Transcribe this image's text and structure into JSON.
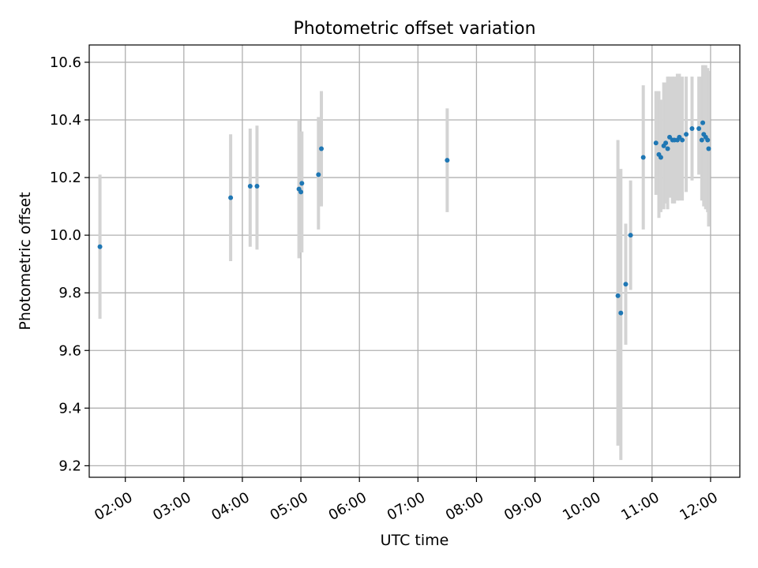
{
  "chart_data": {
    "type": "scatter",
    "title": "Photometric offset variation",
    "xlabel": "UTC time",
    "ylabel": "Photometric offset",
    "x_tick_labels": [
      "02:00",
      "03:00",
      "04:00",
      "05:00",
      "06:00",
      "07:00",
      "08:00",
      "09:00",
      "10:00",
      "11:00",
      "12:00"
    ],
    "y_ticks": [
      9.2,
      9.4,
      9.6,
      9.8,
      10.0,
      10.2,
      10.4,
      10.6
    ],
    "y_tick_labels": [
      "9.2",
      "9.4",
      "9.6",
      "9.8",
      "10.0",
      "10.2",
      "10.4",
      "10.6"
    ],
    "xlim": [
      "01:23",
      "12:30"
    ],
    "ylim": [
      9.16,
      10.66
    ],
    "grid": true,
    "colors": {
      "points": "#1f77b4",
      "error_bars": "#d3d3d3",
      "grid": "#b0b0b0"
    },
    "points": [
      {
        "x": "01:34",
        "y": 9.96,
        "err_low": 9.71,
        "err_high": 10.21
      },
      {
        "x": "03:48",
        "y": 10.13,
        "err_low": 9.91,
        "err_high": 10.35
      },
      {
        "x": "04:08",
        "y": 10.17,
        "err_low": 9.96,
        "err_high": 10.37
      },
      {
        "x": "04:15",
        "y": 10.17,
        "err_low": 9.95,
        "err_high": 10.38
      },
      {
        "x": "04:58",
        "y": 10.16,
        "err_low": 9.92,
        "err_high": 10.4
      },
      {
        "x": "05:00",
        "y": 10.15,
        "err_low": 9.95,
        "err_high": 10.34
      },
      {
        "x": "05:01",
        "y": 10.18,
        "err_low": 9.94,
        "err_high": 10.36
      },
      {
        "x": "05:18",
        "y": 10.21,
        "err_low": 10.02,
        "err_high": 10.41
      },
      {
        "x": "05:21",
        "y": 10.3,
        "err_low": 10.1,
        "err_high": 10.5
      },
      {
        "x": "07:30",
        "y": 10.26,
        "err_low": 10.08,
        "err_high": 10.44
      },
      {
        "x": "10:25",
        "y": 9.79,
        "err_low": 9.27,
        "err_high": 10.33
      },
      {
        "x": "10:28",
        "y": 9.73,
        "err_low": 9.22,
        "err_high": 10.23
      },
      {
        "x": "10:33",
        "y": 9.83,
        "err_low": 9.62,
        "err_high": 10.04
      },
      {
        "x": "10:38",
        "y": 10.0,
        "err_low": 9.81,
        "err_high": 10.19
      },
      {
        "x": "10:51",
        "y": 10.27,
        "err_low": 10.02,
        "err_high": 10.52
      },
      {
        "x": "11:04",
        "y": 10.32,
        "err_low": 10.14,
        "err_high": 10.5
      },
      {
        "x": "11:07",
        "y": 10.28,
        "err_low": 10.06,
        "err_high": 10.5
      },
      {
        "x": "11:09",
        "y": 10.27,
        "err_low": 10.08,
        "err_high": 10.47
      },
      {
        "x": "11:12",
        "y": 10.31,
        "err_low": 10.09,
        "err_high": 10.53
      },
      {
        "x": "11:14",
        "y": 10.32,
        "err_low": 10.11,
        "err_high": 10.53
      },
      {
        "x": "11:16",
        "y": 10.3,
        "err_low": 10.09,
        "err_high": 10.55
      },
      {
        "x": "11:18",
        "y": 10.34,
        "err_low": 10.13,
        "err_high": 10.55
      },
      {
        "x": "11:21",
        "y": 10.33,
        "err_low": 10.11,
        "err_high": 10.55
      },
      {
        "x": "11:23",
        "y": 10.33,
        "err_low": 10.11,
        "err_high": 10.55
      },
      {
        "x": "11:26",
        "y": 10.33,
        "err_low": 10.12,
        "err_high": 10.56
      },
      {
        "x": "11:28",
        "y": 10.34,
        "err_low": 10.12,
        "err_high": 10.56
      },
      {
        "x": "11:31",
        "y": 10.33,
        "err_low": 10.12,
        "err_high": 10.55
      },
      {
        "x": "11:35",
        "y": 10.35,
        "err_low": 10.15,
        "err_high": 10.55
      },
      {
        "x": "11:41",
        "y": 10.37,
        "err_low": 10.19,
        "err_high": 10.55
      },
      {
        "x": "11:48",
        "y": 10.37,
        "err_low": 10.21,
        "err_high": 10.55
      },
      {
        "x": "11:51",
        "y": 10.33,
        "err_low": 10.12,
        "err_high": 10.55
      },
      {
        "x": "11:52",
        "y": 10.39,
        "err_low": 10.19,
        "err_high": 10.59
      },
      {
        "x": "11:53",
        "y": 10.35,
        "err_low": 10.1,
        "err_high": 10.59
      },
      {
        "x": "11:55",
        "y": 10.34,
        "err_low": 10.09,
        "err_high": 10.59
      },
      {
        "x": "11:57",
        "y": 10.33,
        "err_low": 10.08,
        "err_high": 10.58
      },
      {
        "x": "11:58",
        "y": 10.3,
        "err_low": 10.03,
        "err_high": 10.57
      }
    ]
  }
}
